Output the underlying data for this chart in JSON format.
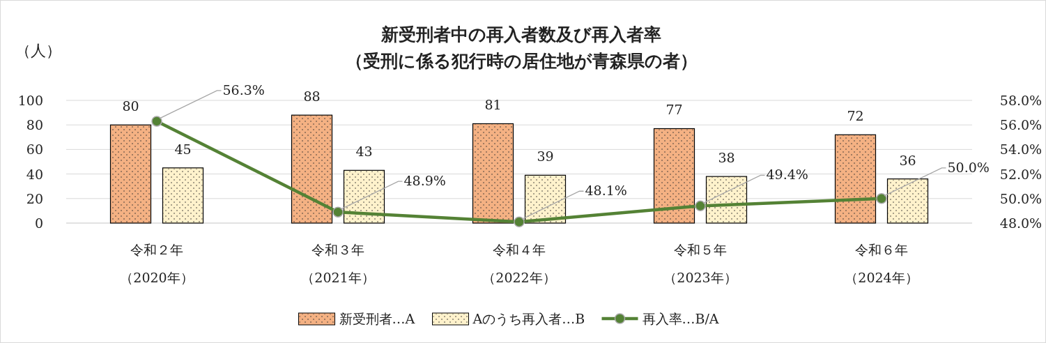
{
  "chart_data": {
    "type": "bar",
    "title": "新受刑者中の再入者数及び再入者率",
    "subtitle": "（受刑に係る犯行時の居住地が青森県の者）",
    "ylabel": "（人）",
    "categories": [
      "令和２年（2020年）",
      "令和３年（2021年）",
      "令和４年（2022年）",
      "令和５年（2023年）",
      "令和６年（2024年）"
    ],
    "series": [
      {
        "name": "新受刑者…A",
        "color": "#f4b183",
        "values": [
          80,
          88,
          81,
          77,
          72
        ]
      },
      {
        "name": "Aのうち再入者…B",
        "color": "#fff2cc",
        "values": [
          45,
          43,
          39,
          38,
          36
        ]
      },
      {
        "name": "再入率…B/A",
        "type": "line",
        "axis": "y2",
        "color": "#548235",
        "marker": "circle",
        "values": [
          56.3,
          48.9,
          48.1,
          49.4,
          50.0
        ],
        "value_labels": [
          "56.3%",
          "48.9%",
          "48.1%",
          "49.4%",
          "50.0%"
        ]
      }
    ],
    "data_labels": true,
    "ylim": [
      0,
      100
    ],
    "yticks": [
      0,
      20,
      40,
      60,
      80,
      100
    ],
    "y2lim": [
      48,
      58
    ],
    "y2ticks": [
      {
        "value": 48,
        "label": "48.0%"
      },
      {
        "value": 50,
        "label": "50.0%"
      },
      {
        "value": 52,
        "label": "52.0%"
      },
      {
        "value": 54,
        "label": "54.0%"
      },
      {
        "value": 56,
        "label": "56.0%"
      },
      {
        "value": 58,
        "label": "58.0%"
      }
    ],
    "grid": "y",
    "legend": "bottom"
  }
}
